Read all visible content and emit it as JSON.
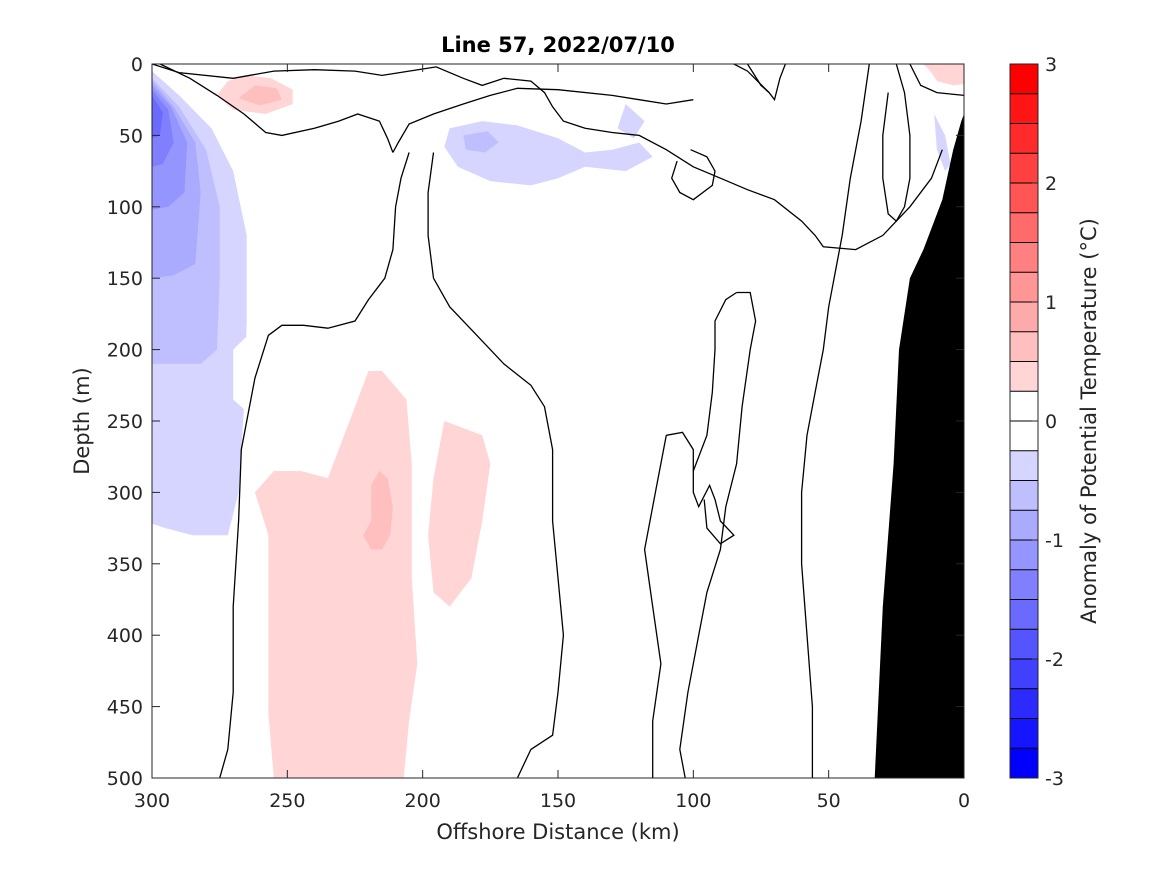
{
  "chart_data": {
    "type": "heatmap",
    "title": "Line 57, 2022/07/10",
    "xlabel": "Offshore Distance (km)",
    "ylabel": "Depth (m)",
    "xlim": [
      300,
      0
    ],
    "ylim": [
      0,
      500
    ],
    "x_direction": "reversed",
    "y_direction": "depth-down",
    "xticks": [
      300,
      250,
      200,
      150,
      100,
      50,
      0
    ],
    "yticks": [
      0,
      50,
      100,
      150,
      200,
      250,
      300,
      350,
      400,
      450,
      500
    ],
    "colorbar": {
      "label": "Anomaly of Potential Temperature (°C)",
      "range": [
        -3,
        3
      ],
      "step": 0.25,
      "ticks": [
        -3,
        -2,
        -1,
        0,
        1,
        2,
        3
      ],
      "zero_color": "#ffffff",
      "positive_color": "#ff0000",
      "negative_color": "#0000ff"
    },
    "zero_contour_color": "#000000",
    "bathymetry_color": "#000000",
    "features": [
      {
        "name": "cold core",
        "x_range": [
          300,
          270
        ],
        "depth_range": [
          10,
          90
        ],
        "value": -1.75
      },
      {
        "name": "warm core",
        "x_range": [
          220,
          210
        ],
        "depth_range": [
          280,
          340
        ],
        "value": 0.75
      },
      {
        "name": "warm subsurface band",
        "x_range": [
          265,
          190
        ],
        "depth_range": [
          230,
          500
        ],
        "value": 0.5
      },
      {
        "name": "shallow warm patch",
        "x_range": [
          260,
          230
        ],
        "depth_range": [
          10,
          40
        ],
        "value": 0.75
      },
      {
        "name": "shelf",
        "x_range": [
          33,
          0
        ],
        "depth_range": [
          35,
          500
        ],
        "value": null
      }
    ]
  }
}
